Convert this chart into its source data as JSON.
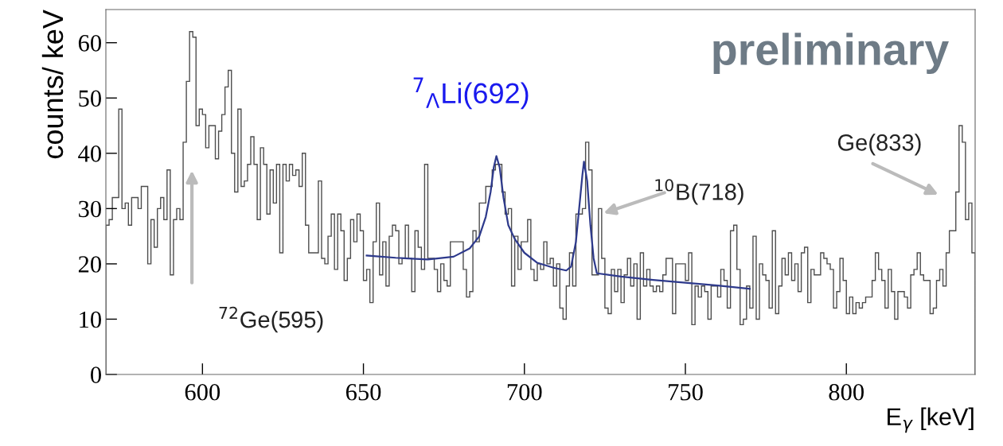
{
  "chart_data": {
    "type": "histogram",
    "xlabel": "E$_{γ}$ [keV]",
    "ylabel": "counts/ keV",
    "bins": [
      570,
      571,
      572,
      573,
      574,
      575,
      576,
      577,
      578,
      579,
      580,
      581,
      582,
      583,
      584,
      585,
      586,
      587,
      588,
      589,
      590,
      591,
      592,
      593,
      594,
      595,
      596,
      597,
      598,
      599,
      600,
      601,
      602,
      603,
      604,
      605,
      606,
      607,
      608,
      609,
      610,
      611,
      612,
      613,
      614,
      615,
      616,
      617,
      618,
      619,
      620,
      621,
      622,
      623,
      624,
      625,
      626,
      627,
      628,
      629,
      630,
      631,
      632,
      633,
      634,
      635,
      636,
      637,
      638,
      639,
      640,
      641,
      642,
      643,
      644,
      645,
      646,
      647,
      648,
      649,
      650,
      651,
      652,
      653,
      654,
      655,
      656,
      657,
      658,
      659,
      660,
      661,
      662,
      663,
      664,
      665,
      666,
      667,
      668,
      669,
      670,
      671,
      672,
      673,
      674,
      675,
      676,
      677,
      678,
      679,
      680,
      681,
      682,
      683,
      684,
      685,
      686,
      687,
      688,
      689,
      690,
      691,
      692,
      693,
      694,
      695,
      696,
      697,
      698,
      699,
      700,
      701,
      702,
      703,
      704,
      705,
      706,
      707,
      708,
      709,
      710,
      711,
      712,
      713,
      714,
      715,
      716,
      717,
      718,
      719,
      720,
      721,
      722,
      723,
      724,
      725,
      726,
      727,
      728,
      729,
      730,
      731,
      732,
      733,
      734,
      735,
      736,
      737,
      738,
      739,
      740,
      741,
      742,
      743,
      744,
      745,
      746,
      747,
      748,
      749,
      750,
      751,
      752,
      753,
      754,
      755,
      756,
      757,
      758,
      759,
      760,
      761,
      762,
      763,
      764,
      765,
      766,
      767,
      768,
      769,
      770,
      771,
      772,
      773,
      774,
      775,
      776,
      777,
      778,
      779,
      780,
      781,
      782,
      783,
      784,
      785,
      786,
      787,
      788,
      789,
      790,
      791,
      792,
      793,
      794,
      795,
      796,
      797,
      798,
      799,
      800,
      801,
      802,
      803,
      804,
      805,
      806,
      807,
      808,
      809,
      810,
      811,
      812,
      813,
      814,
      815,
      816,
      817,
      818,
      819,
      820,
      821,
      822,
      823,
      824,
      825,
      826,
      827,
      828,
      829,
      830,
      831,
      832,
      833,
      834,
      835,
      836,
      837,
      838,
      839,
      840
    ],
    "series": [
      {
        "type": "histogram",
        "color": "#4d4d4d",
        "values": [
          27,
          28,
          32,
          32,
          48,
          30,
          31,
          27,
          32,
          32,
          30,
          34,
          34,
          20,
          28,
          23,
          30,
          32,
          28,
          37,
          18,
          28,
          30,
          28,
          42,
          53,
          62,
          61,
          45,
          48,
          47,
          41,
          45,
          45,
          39,
          44,
          47,
          52,
          55,
          40,
          33,
          48,
          34,
          35,
          38,
          43,
          38,
          28,
          41,
          38,
          29,
          37,
          31,
          38,
          22,
          38,
          35,
          38,
          36,
          37,
          34,
          40,
          27,
          22,
          22,
          22,
          35,
          21,
          20,
          25,
          29,
          19,
          29,
          26,
          17,
          21,
          28,
          24,
          29,
          26,
          17,
          19,
          13,
          24,
          31,
          18,
          24,
          16,
          25,
          27,
          26,
          20,
          21,
          27,
          21,
          15,
          26,
          23,
          19,
          38,
          21,
          21,
          19,
          15,
          20,
          17,
          16,
          24,
          24,
          24,
          24,
          19,
          14,
          15,
          26,
          24,
          31,
          31,
          34,
          34,
          37,
          38,
          38,
          33,
          29,
          30,
          16,
          25,
          19,
          24,
          24,
          28,
          19,
          17,
          20,
          19,
          24,
          20,
          21,
          16,
          20,
          12,
          10,
          16,
          22,
          16,
          29,
          29,
          30,
          42,
          37,
          18,
          18,
          30,
          21,
          12,
          11,
          19,
          15,
          19,
          13,
          18,
          21,
          16,
          20,
          10,
          22,
          16,
          19,
          16,
          15,
          16,
          15,
          18,
          21,
          21,
          11,
          20,
          20,
          20,
          17,
          22,
          9,
          16,
          14,
          16,
          15,
          10,
          16,
          16,
          14,
          19,
          17,
          12,
          26,
          27,
          19,
          9,
          10,
          16,
          12,
          25,
          10,
          20,
          18,
          17,
          12,
          26,
          11,
          16,
          21,
          18,
          22,
          17,
          20,
          15,
          22,
          23,
          13,
          19,
          18,
          18,
          22,
          21,
          20,
          19,
          12,
          15,
          21,
          17,
          11,
          14,
          11,
          13,
          12,
          13,
          14,
          14,
          17,
          22,
          19,
          17,
          12,
          19,
          15,
          10,
          15,
          15,
          14,
          12,
          18,
          19,
          22,
          18,
          17,
          17,
          11,
          12,
          17,
          19,
          16,
          22,
          26,
          26,
          33,
          45,
          42,
          28,
          31,
          22
        ]
      },
      {
        "type": "line",
        "color": "#2e3a8c",
        "x": [
          651,
          660,
          670,
          678,
          683,
          686,
          688,
          689.5,
          690.5,
          691.3,
          692.3,
          693.5,
          695,
          697,
          700,
          704,
          709,
          713,
          714.5,
          716,
          717,
          718,
          718.5,
          719.5,
          720.5,
          721.5,
          722.5,
          730,
          740,
          750,
          760,
          770
        ],
        "values": [
          21.5,
          21.1,
          20.8,
          21.3,
          22.8,
          25,
          28.5,
          33,
          37.5,
          39.5,
          37.5,
          32,
          27,
          24.5,
          22,
          20.2,
          19.3,
          18.8,
          19.5,
          24,
          30,
          36,
          38.5,
          35,
          27,
          21,
          18.3,
          17.7,
          17.1,
          16.6,
          16.1,
          15.5
        ]
      }
    ],
    "xlim": [
      570,
      840
    ],
    "xticks": [
      600,
      650,
      700,
      750,
      800
    ],
    "ylim": [
      0,
      66
    ],
    "yticks": [
      0,
      10,
      20,
      30,
      40,
      50,
      60
    ],
    "grid": false,
    "legend": false,
    "annotations": [
      "preliminary",
      "$^{7}$$_{Λ}$Li(692)",
      "$^{72}$Ge(595)",
      "$^{10}$B(718)",
      "Ge(833)"
    ]
  }
}
